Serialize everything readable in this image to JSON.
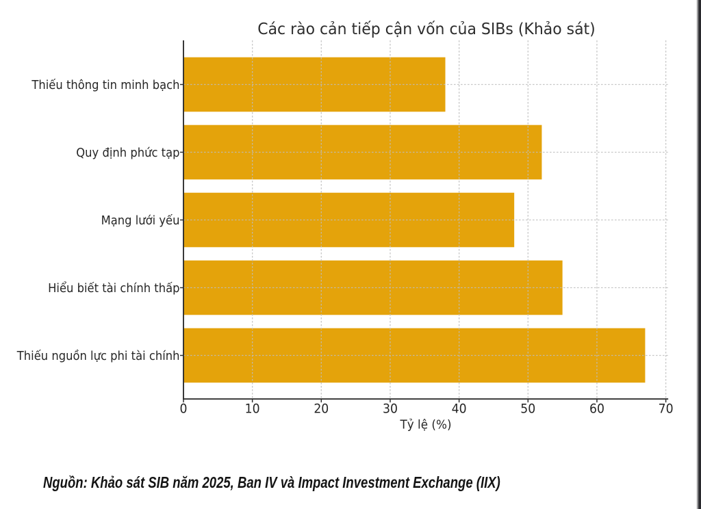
{
  "figure": {
    "background": "#ffffff",
    "viewer_strip_color": "#2a2a2e"
  },
  "chart_data": {
    "type": "bar",
    "orientation": "horizontal",
    "title": "Các rào cản tiếp cận vốn của SIBs (Khảo sát)",
    "xlabel": "Tỷ lệ (%)",
    "ylabel": "",
    "categories": [
      "Thiếu thông tin minh bạch",
      "Quy định phức tạp",
      "Mạng lưới yếu",
      "Hiểu biết tài chính thấp",
      "Thiếu nguồn lực phi tài chính"
    ],
    "values": [
      38,
      52,
      48,
      55,
      67
    ],
    "xlim": [
      0,
      70.35
    ],
    "xticks": [
      0,
      10,
      20,
      30,
      40,
      50,
      60,
      70
    ],
    "grid": true,
    "grid_linestyle": "dashed",
    "legend_position": "none",
    "colors": {
      "bar": "#e4a30b",
      "grid": "#bdbdbd",
      "spine": "#2e2e2e",
      "text": "#262626",
      "title": "#2d2d2d"
    }
  },
  "note": {
    "text": "Nguồn: Khảo sát SIB năm 2025, Ban IV và Impact Investment Exchange (IIX)"
  }
}
